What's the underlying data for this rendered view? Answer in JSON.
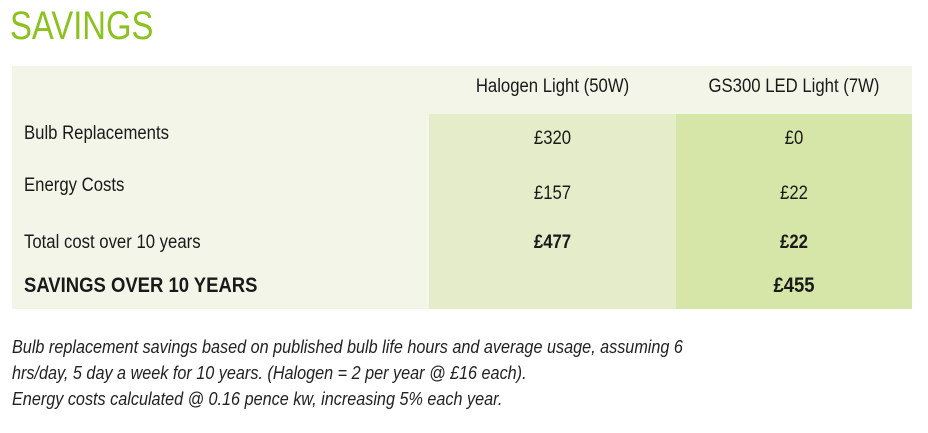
{
  "title": "SAVINGS",
  "table": {
    "headers": [
      "",
      "Halogen Light (50W)",
      "GS300 LED Light (7W)"
    ],
    "rows": [
      {
        "label": "Bulb Replacements",
        "halogen": "£320",
        "led": "£0"
      },
      {
        "label": "Energy Costs",
        "halogen": "£157",
        "led": "£22"
      },
      {
        "label": "Total cost over 10 years",
        "halogen": "£477",
        "led": "£22"
      },
      {
        "label": "SAVINGS OVER 10 YEARS",
        "halogen": "",
        "led": "£455"
      }
    ]
  },
  "notes": [
    "Bulb replacement savings based on published bulb life hours and average usage, assuming 6",
    "hrs/day, 5 day a week for 10 years. (Halogen = 2 per year @ £16 each).",
    "Energy costs calculated @ 0.16 pence kw, increasing 5% each year."
  ],
  "colors": {
    "accent": "#8cc21f",
    "table_bg": "#f3f5e8",
    "halogen_bg": "#e4ecca",
    "led_bg": "#d6e5a8"
  }
}
